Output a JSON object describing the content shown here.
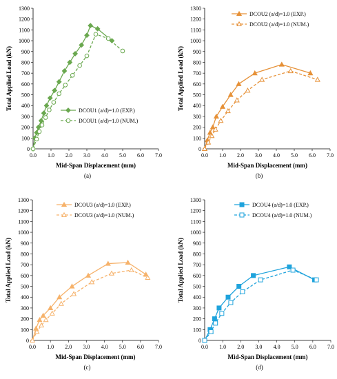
{
  "chart_data": [
    {
      "type": "line",
      "panel_label": "(a)",
      "xlabel": "Mid-Span Displacement (mm)",
      "ylabel": "Total Applied Load (kN)",
      "xlim": [
        0,
        7
      ],
      "ylim": [
        0,
        1300
      ],
      "x_ticks": [
        "0.0",
        "1.0",
        "2.0",
        "3.0",
        "4.0",
        "5.0",
        "6.0",
        "7.0"
      ],
      "y_ticks": [
        "0",
        "100",
        "200",
        "300",
        "400",
        "500",
        "600",
        "700",
        "800",
        "900",
        "1000",
        "1100",
        "1200",
        "1300"
      ],
      "grid": false,
      "legend_position": "bottom-right",
      "color": "#6aa84f",
      "series": [
        {
          "name": "DCOU1 (a/d)=1.0 (EXP.)",
          "style": "solid",
          "marker": "filled-diamond",
          "x": [
            0.0,
            0.1,
            0.2,
            0.3,
            0.45,
            0.6,
            0.75,
            0.95,
            1.2,
            1.45,
            1.75,
            2.05,
            2.35,
            2.7,
            3.0,
            3.2,
            3.6,
            4.4
          ],
          "y": [
            0,
            100,
            150,
            200,
            260,
            330,
            400,
            470,
            540,
            620,
            720,
            800,
            880,
            960,
            1050,
            1140,
            1110,
            1000
          ]
        },
        {
          "name": "DCOU1 (a/d)=1.0 (NUM.)",
          "style": "dashed",
          "marker": "open-circle",
          "x": [
            0.0,
            0.2,
            0.35,
            0.5,
            0.7,
            0.9,
            1.15,
            1.45,
            1.8,
            2.2,
            2.6,
            3.0,
            3.5,
            4.2,
            5.0
          ],
          "y": [
            0,
            90,
            160,
            220,
            290,
            360,
            430,
            510,
            590,
            680,
            770,
            860,
            1060,
            1020,
            905
          ]
        }
      ]
    },
    {
      "type": "line",
      "panel_label": "(b)",
      "xlabel": "Mid-Span Displacement (mm)",
      "ylabel": "Total Applied Load (kN)",
      "xlim": [
        0,
        7
      ],
      "ylim": [
        0,
        1300
      ],
      "x_ticks": [
        "0.0",
        "1.0",
        "2.0",
        "3.0",
        "4.0",
        "5.0",
        "6.0",
        "7.0"
      ],
      "y_ticks": [
        "0",
        "100",
        "200",
        "300",
        "400",
        "500",
        "600",
        "700",
        "800",
        "900",
        "1000",
        "1100",
        "1200",
        "1300"
      ],
      "grid": false,
      "legend_position": "top-right",
      "color": "#e69138",
      "series": [
        {
          "name": "DCOU2 (a/d)=1.0 (EXP.)",
          "style": "solid",
          "marker": "filled-triangle",
          "x": [
            0.0,
            0.15,
            0.3,
            0.45,
            0.65,
            1.0,
            1.45,
            1.9,
            2.8,
            4.3,
            5.9
          ],
          "y": [
            0,
            80,
            150,
            200,
            300,
            390,
            500,
            600,
            700,
            780,
            700
          ]
        },
        {
          "name": "DCOU2 (a/d)=1.0 (NUM.)",
          "style": "dashed",
          "marker": "open-triangle",
          "x": [
            0.0,
            0.2,
            0.4,
            0.6,
            0.9,
            1.3,
            1.8,
            2.4,
            3.2,
            4.8,
            6.3
          ],
          "y": [
            0,
            60,
            120,
            180,
            260,
            350,
            450,
            540,
            640,
            720,
            640
          ]
        }
      ]
    },
    {
      "type": "line",
      "panel_label": "(c)",
      "xlabel": "Mid-Span Displacement (mm)",
      "ylabel": "Total Applied Load (kN)",
      "xlim": [
        0,
        7
      ],
      "ylim": [
        0,
        1300
      ],
      "x_ticks": [
        "0.0",
        "1.0",
        "2.0",
        "3.0",
        "4.0",
        "5.0",
        "6.0",
        "7.0"
      ],
      "y_ticks": [
        "0",
        "100",
        "200",
        "300",
        "400",
        "500",
        "600",
        "700",
        "800",
        "900",
        "1000",
        "1100",
        "1200",
        "1300"
      ],
      "grid": false,
      "legend_position": "top-center",
      "color": "#f6b26b",
      "series": [
        {
          "name": "DCOU3 (a/d)=1.0 (EXP.)",
          "style": "solid",
          "marker": "filled-triangle",
          "x": [
            0.0,
            0.2,
            0.4,
            0.6,
            1.0,
            1.5,
            2.2,
            3.1,
            4.2,
            5.3,
            6.3
          ],
          "y": [
            0,
            110,
            190,
            230,
            300,
            400,
            500,
            600,
            710,
            720,
            610
          ]
        },
        {
          "name": "DCOU3 (a/d)=1.0 (NUM.)",
          "style": "dashed",
          "marker": "open-triangle",
          "x": [
            0.0,
            0.25,
            0.5,
            0.75,
            1.1,
            1.6,
            2.3,
            3.3,
            4.4,
            5.5,
            6.4
          ],
          "y": [
            0,
            80,
            140,
            190,
            250,
            340,
            430,
            540,
            620,
            650,
            580
          ]
        }
      ]
    },
    {
      "type": "line",
      "panel_label": "(d)",
      "xlabel": "Mid-Span Displacement (mm)",
      "ylabel": "Total Applied Load (kN)",
      "xlim": [
        0,
        7
      ],
      "ylim": [
        0,
        1300
      ],
      "x_ticks": [
        "0.0",
        "1.0",
        "2.0",
        "3.0",
        "4.0",
        "5.0",
        "6.0",
        "7.0"
      ],
      "y_ticks": [
        "0",
        "100",
        "200",
        "300",
        "400",
        "500",
        "600",
        "700",
        "800",
        "900",
        "1000",
        "1100",
        "1200",
        "1300"
      ],
      "grid": false,
      "legend_position": "top-right",
      "color": "#1fa3dc",
      "series": [
        {
          "name": "DCOU4 (a/d)=1.0 (EXP.)",
          "style": "solid",
          "marker": "filled-square",
          "x": [
            0.0,
            0.3,
            0.55,
            0.8,
            1.3,
            1.9,
            2.7,
            4.7,
            6.1
          ],
          "y": [
            0,
            100,
            200,
            300,
            400,
            500,
            600,
            680,
            560
          ]
        },
        {
          "name": "DCOU4 (a/d)=1.0 (NUM.)",
          "style": "dashed",
          "marker": "open-square",
          "x": [
            0.0,
            0.35,
            0.6,
            0.95,
            1.45,
            2.1,
            3.1,
            4.9,
            6.2
          ],
          "y": [
            0,
            80,
            160,
            250,
            350,
            450,
            560,
            650,
            560
          ]
        }
      ]
    }
  ]
}
